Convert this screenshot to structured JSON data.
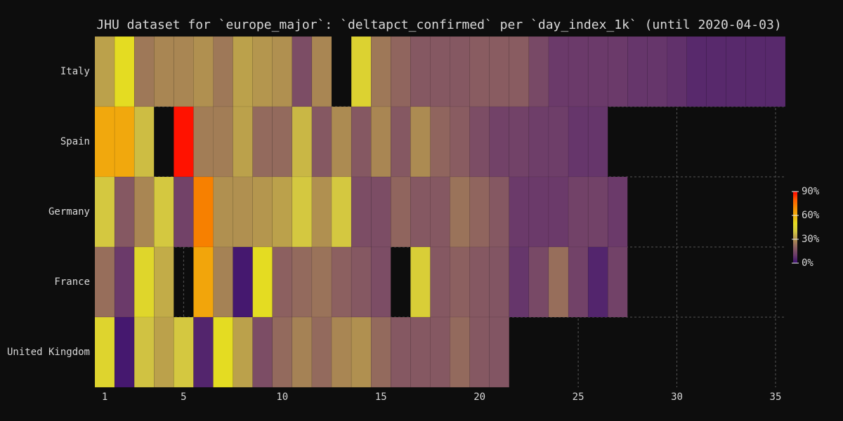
{
  "chart_data": {
    "type": "heatmap",
    "title": "JHU dataset for `europe_major`: `deltapct_confirmed` per `day_index_1k` (until 2020-04-03)",
    "x": [
      1,
      2,
      3,
      4,
      5,
      6,
      7,
      8,
      9,
      10,
      11,
      12,
      13,
      14,
      15,
      16,
      17,
      18,
      19,
      20,
      21,
      22,
      23,
      24,
      25,
      26,
      27,
      28,
      29,
      30,
      31,
      32,
      33,
      34,
      35
    ],
    "series": [
      {
        "name": "Italy",
        "values": [
          33,
          50,
          25,
          28,
          28,
          30,
          25,
          33,
          31,
          30,
          15,
          28,
          null,
          45,
          25,
          21,
          18,
          18,
          18,
          19,
          19,
          19,
          14,
          10,
          10,
          10,
          10,
          9,
          9,
          8,
          6,
          6,
          6,
          6,
          6
        ]
      },
      {
        "name": "Spain",
        "values": [
          62,
          62,
          38,
          null,
          88,
          26,
          26,
          33,
          22,
          22,
          37,
          18,
          29,
          18,
          28,
          18,
          29,
          21,
          19,
          15,
          12,
          12,
          11,
          11,
          9,
          9,
          null,
          null,
          null,
          null,
          null,
          null,
          null,
          null,
          null
        ]
      },
      {
        "name": "Germany",
        "values": [
          40,
          18,
          28,
          40,
          12,
          72,
          30,
          30,
          31,
          33,
          40,
          30,
          40,
          15,
          15,
          21,
          18,
          18,
          24,
          21,
          18,
          10,
          10,
          10,
          12,
          12,
          10,
          null,
          null,
          null,
          null,
          null,
          null,
          null,
          null
        ]
      },
      {
        "name": "France",
        "values": [
          23,
          10,
          47,
          35,
          null,
          63,
          27,
          2,
          50,
          20,
          22,
          24,
          20,
          18,
          15,
          null,
          43,
          18,
          20,
          18,
          17,
          9,
          14,
          23,
          12,
          5,
          12,
          null,
          null,
          null,
          null,
          null,
          null,
          null,
          null
        ]
      },
      {
        "name": "United Kingdom",
        "values": [
          46,
          2,
          39,
          33,
          40,
          5,
          50,
          33,
          15,
          22,
          27,
          22,
          28,
          30,
          22,
          18,
          18,
          18,
          22,
          18,
          17,
          null,
          null,
          null,
          null,
          null,
          null,
          null,
          null,
          null,
          null,
          null,
          null,
          null,
          null
        ]
      }
    ],
    "xlim": [
      0.5,
      35.5
    ],
    "xticks": [
      1,
      5,
      10,
      15,
      20,
      25,
      30,
      35
    ],
    "zlim": [
      0,
      90
    ],
    "colorbar_ticks": [
      {
        "value": 0,
        "label": "0%"
      },
      {
        "value": 30,
        "label": "30%"
      },
      {
        "value": 60,
        "label": "60%"
      },
      {
        "value": 90,
        "label": "90%"
      }
    ],
    "colors": [
      "#3b0f70",
      "#6b3a6a",
      "#8c6060",
      "#b09050",
      "#d4c840",
      "#e4dc22",
      "#f0b010",
      "#f58a00",
      "#ff5a00",
      "#ff0000"
    ],
    "grid": true
  }
}
